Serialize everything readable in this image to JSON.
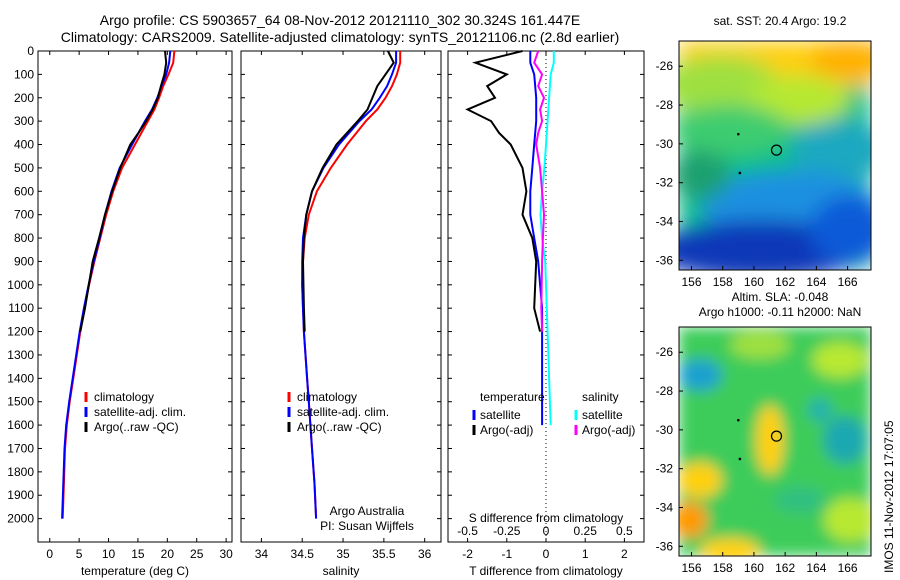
{
  "header": {
    "title_line1": "Argo profile: CS 5903657_64 08-Nov-2012 20121110_302 30.324S 161.447E",
    "title_line2": "Climatology: CARS2009. Satellite-adjusted climatology: synTS_20121106.nc (2.8d earlier)"
  },
  "map_titles": {
    "top": "sat. SST: 20.4  Argo: 19.2",
    "bottom_line1": "Altim. SLA: -0.048",
    "bottom_line2": "Argo h1000: -0.11  h2000: NaN"
  },
  "stamp": "IMOS 11-Nov-2012 17:07:05",
  "colors": {
    "climatology": "#ff0000",
    "satellite": "#0000ff",
    "argo": "#000000",
    "satellite_salinity": "#00ffff",
    "argo_salinity": "#ff00ff"
  },
  "chart_data": [
    {
      "type": "line",
      "title": "",
      "xlabel": "temperature (deg C)",
      "ylabel": "",
      "xlim": [
        -2,
        31
      ],
      "ylim": [
        2100,
        0
      ],
      "y_inverted": true,
      "xticks": [
        0,
        5,
        10,
        15,
        20,
        25,
        30
      ],
      "yticks": [
        0,
        100,
        200,
        300,
        400,
        500,
        600,
        700,
        800,
        900,
        1000,
        1100,
        1200,
        1300,
        1400,
        1500,
        1600,
        1700,
        1800,
        1900,
        2000
      ],
      "legend": {
        "position": "middle-left",
        "entries": [
          "climatology",
          "satellite-adj. clim.",
          "Argo(..raw -QC)"
        ]
      },
      "series": [
        {
          "name": "climatology",
          "color": "#ff0000",
          "x": [
            21.2,
            21.0,
            20.2,
            19.3,
            18.6,
            17.8,
            16.7,
            14.5,
            12.3,
            10.8,
            9.6,
            8.6,
            7.6,
            6.7,
            5.9,
            5.2,
            4.6,
            4.0,
            3.4,
            2.9,
            2.6,
            2.4,
            2.2
          ],
          "y": [
            0,
            50,
            100,
            150,
            200,
            250,
            300,
            400,
            500,
            600,
            700,
            800,
            900,
            1000,
            1100,
            1200,
            1300,
            1400,
            1500,
            1600,
            1700,
            1850,
            2000
          ]
        },
        {
          "name": "satellite-adj. clim.",
          "color": "#0000ff",
          "x": [
            20.5,
            20.3,
            19.8,
            19.0,
            18.3,
            17.4,
            16.2,
            14.0,
            11.9,
            10.5,
            9.4,
            8.5,
            7.5,
            6.6,
            5.8,
            5.1,
            4.5,
            3.9,
            3.3,
            2.8,
            2.5,
            2.3,
            2.1
          ],
          "y": [
            0,
            50,
            100,
            150,
            200,
            250,
            300,
            400,
            500,
            600,
            700,
            800,
            900,
            1000,
            1100,
            1200,
            1300,
            1400,
            1500,
            1600,
            1700,
            1850,
            2000
          ]
        },
        {
          "name": "Argo(..raw -QC)",
          "color": "#000000",
          "x": [
            19.6,
            19.8,
            19.5,
            18.9,
            18.4,
            17.5,
            16.4,
            15.1,
            13.7,
            12.0,
            10.6,
            9.4,
            8.4,
            7.3,
            6.0,
            5.2
          ],
          "y": [
            0,
            50,
            100,
            150,
            200,
            250,
            300,
            350,
            400,
            500,
            600,
            700,
            800,
            900,
            1100,
            1200
          ]
        }
      ],
      "annotations": []
    },
    {
      "type": "line",
      "title": "",
      "xlabel": "salinity",
      "ylabel": "",
      "xlim": [
        33.75,
        36.2
      ],
      "ylim": [
        2100,
        0
      ],
      "y_inverted": true,
      "xticks": [
        34,
        34.5,
        35,
        35.5,
        36
      ],
      "legend": {
        "position": "middle-left",
        "entries": [
          "climatology",
          "satellite-adj. clim.",
          "Argo(..raw -QC)"
        ]
      },
      "series": [
        {
          "name": "climatology",
          "color": "#ff0000",
          "x": [
            35.7,
            35.7,
            35.66,
            35.6,
            35.52,
            35.42,
            35.28,
            35.05,
            34.85,
            34.68,
            34.58,
            34.53,
            34.51,
            34.5,
            34.51,
            34.52,
            34.54,
            34.56,
            34.58,
            34.6,
            34.62,
            34.65,
            34.67
          ],
          "y": [
            0,
            50,
            100,
            150,
            200,
            250,
            300,
            400,
            500,
            600,
            700,
            800,
            900,
            1000,
            1100,
            1200,
            1300,
            1400,
            1500,
            1600,
            1700,
            1850,
            2000
          ]
        },
        {
          "name": "satellite-adj. clim.",
          "color": "#0000ff",
          "x": [
            35.65,
            35.65,
            35.6,
            35.54,
            35.45,
            35.35,
            35.2,
            34.95,
            34.76,
            34.62,
            34.55,
            34.51,
            34.5,
            34.5,
            34.51,
            34.52,
            34.54,
            34.56,
            34.58,
            34.6,
            34.62,
            34.65,
            34.67
          ],
          "y": [
            0,
            50,
            100,
            150,
            200,
            250,
            300,
            400,
            500,
            600,
            700,
            800,
            900,
            1000,
            1100,
            1200,
            1300,
            1400,
            1500,
            1600,
            1700,
            1850,
            2000
          ]
        },
        {
          "name": "Argo(..raw -QC)",
          "color": "#000000",
          "x": [
            35.55,
            35.62,
            35.52,
            35.42,
            35.36,
            35.3,
            35.18,
            35.05,
            34.92,
            34.75,
            34.62,
            34.55,
            34.52,
            34.51,
            34.52,
            34.53
          ],
          "y": [
            0,
            50,
            100,
            150,
            200,
            250,
            300,
            350,
            400,
            500,
            600,
            700,
            800,
            900,
            1100,
            1200
          ]
        }
      ],
      "annotations": [
        "Argo Australia",
        "PI: Susan Wijffels"
      ]
    },
    {
      "type": "line",
      "title": "",
      "xlabel": "T difference from climatology",
      "xlabel_top": "S difference from climatology",
      "ylabel": "",
      "xlim": [
        -2.5,
        2.5
      ],
      "ylim": [
        2100,
        0
      ],
      "y_inverted": true,
      "xticks": [
        -2,
        -1,
        0,
        1,
        2
      ],
      "xticks_top_labels": [
        "-0.5",
        "-0.25",
        "0",
        "0.25",
        "0.5"
      ],
      "xticks_top_positions": [
        -2,
        -1,
        0,
        1,
        2
      ],
      "zero_line": true,
      "legend": {
        "position": "middle-left",
        "headings": [
          "temperature",
          "salinity"
        ],
        "entries": [
          "satellite",
          "Argo(-adj)",
          "satellite",
          "Argo(-adj)"
        ]
      },
      "series": [
        {
          "name": "temperature satellite",
          "color": "#0000ff",
          "x": [
            -0.4,
            -0.4,
            -0.3,
            -0.25,
            -0.25,
            -0.3,
            -0.35,
            -0.4,
            -0.4,
            -0.3,
            -0.2,
            -0.15,
            -0.1,
            -0.1,
            -0.1,
            -0.1,
            -0.1,
            -0.1
          ],
          "y": [
            0,
            50,
            100,
            200,
            300,
            400,
            500,
            600,
            700,
            800,
            900,
            1000,
            1100,
            1200,
            1300,
            1400,
            1500,
            1600
          ]
        },
        {
          "name": "temperature Argo(-adj)",
          "color": "#000000",
          "x": [
            -0.6,
            -1.8,
            -1.0,
            -1.5,
            -1.3,
            -2.0,
            -1.4,
            -1.2,
            -0.9,
            -0.6,
            -0.5,
            -0.6,
            -0.35,
            -0.25,
            -0.3,
            -0.15
          ],
          "y": [
            0,
            50,
            100,
            150,
            200,
            250,
            300,
            350,
            400,
            500,
            600,
            700,
            800,
            900,
            1100,
            1200
          ]
        },
        {
          "name": "salinity satellite",
          "color": "#00ffff",
          "x": [
            0.2,
            0.2,
            0.12,
            0.08,
            0.04,
            0.0,
            -0.04,
            -0.1,
            -0.14,
            -0.1,
            -0.02,
            0.0,
            0.02,
            0.04,
            0.06,
            0.08,
            0.1,
            0.12
          ],
          "y": [
            0,
            50,
            100,
            200,
            300,
            400,
            500,
            600,
            700,
            800,
            900,
            1000,
            1100,
            1200,
            1300,
            1400,
            1500,
            1600
          ]
        },
        {
          "name": "salinity Argo(-adj)",
          "color": "#ff00ff",
          "x": [
            -0.2,
            -0.3,
            -0.1,
            -0.2,
            -0.05,
            -0.15,
            -0.1,
            -0.2,
            -0.25,
            -0.15,
            -0.1,
            -0.05,
            -0.08,
            -0.1,
            -0.12,
            -0.1
          ],
          "y": [
            0,
            50,
            100,
            150,
            200,
            250,
            300,
            350,
            400,
            500,
            600,
            700,
            800,
            900,
            1100,
            1200
          ]
        }
      ]
    },
    {
      "type": "heatmap",
      "title": "sat. SST: 20.4  Argo: 19.2",
      "xlim": [
        155.2,
        167.5
      ],
      "ylim": [
        -36.5,
        -24.7
      ],
      "xticks": [
        156,
        158,
        160,
        162,
        164,
        166
      ],
      "yticks": [
        -26,
        -28,
        -30,
        -32,
        -34,
        -36
      ],
      "marker": {
        "lon": 161.447,
        "lat": -30.324
      },
      "track_points": [
        {
          "lon": 159.0,
          "lat": -29.5
        },
        {
          "lon": 159.1,
          "lat": -31.5
        }
      ]
    },
    {
      "type": "heatmap",
      "title": "Altim. SLA: -0.048 / Argo h1000: -0.11  h2000: NaN",
      "xlim": [
        155.2,
        167.5
      ],
      "ylim": [
        -36.5,
        -24.7
      ],
      "xticks": [
        156,
        158,
        160,
        162,
        164,
        166
      ],
      "yticks": [
        -26,
        -28,
        -30,
        -32,
        -34,
        -36
      ],
      "marker": {
        "lon": 161.447,
        "lat": -30.324
      },
      "track_points": [
        {
          "lon": 159.0,
          "lat": -29.5
        },
        {
          "lon": 159.1,
          "lat": -31.5
        }
      ]
    }
  ]
}
